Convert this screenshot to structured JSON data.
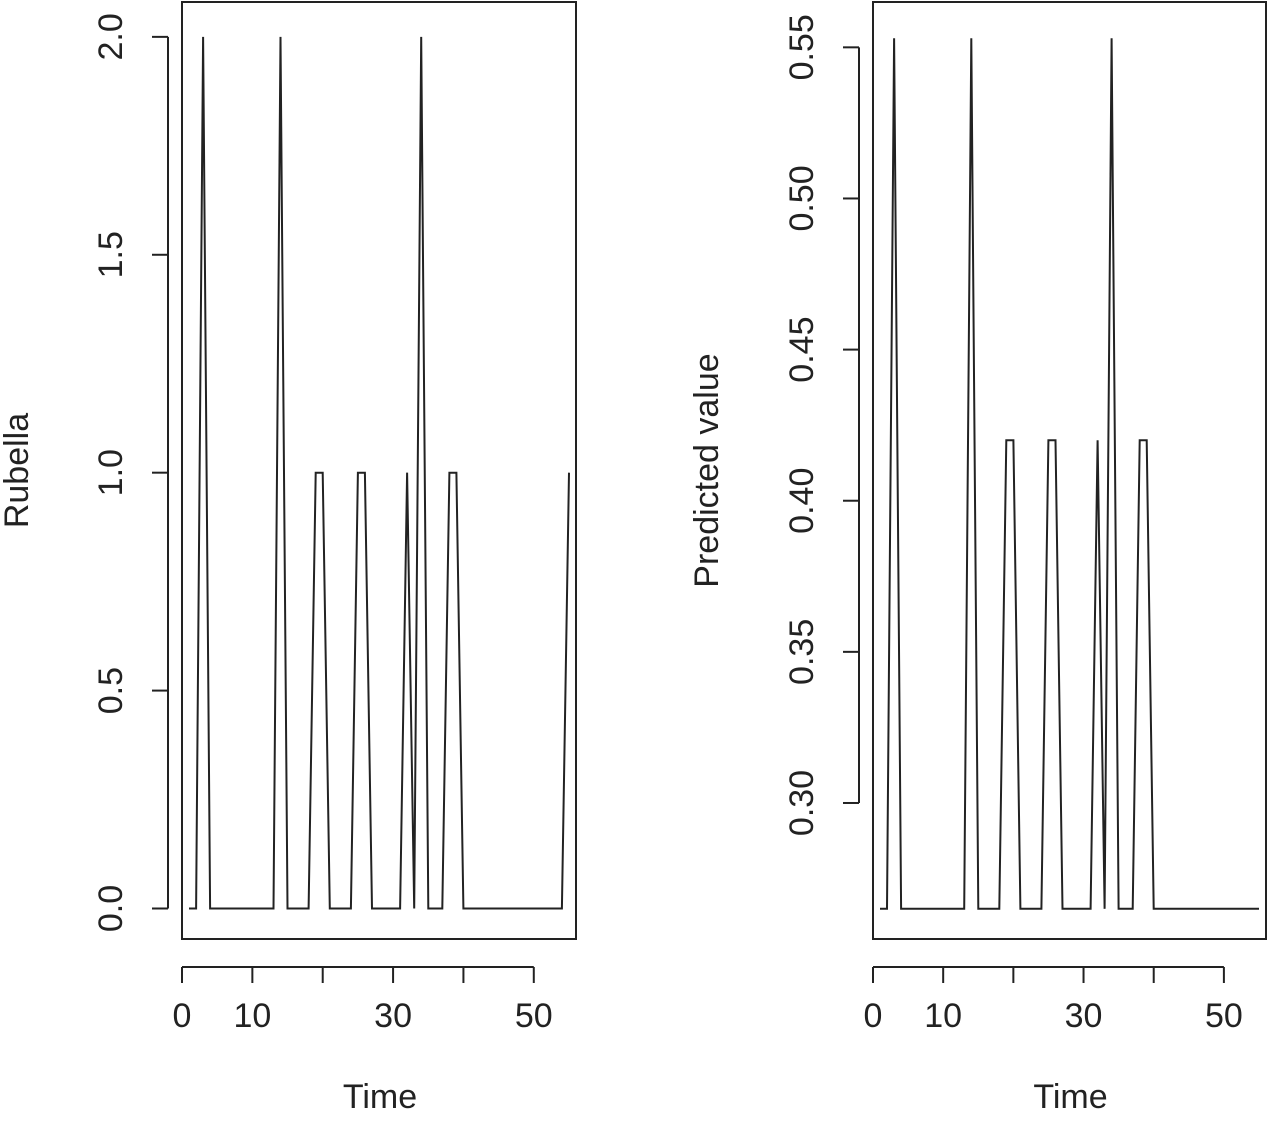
{
  "chart_data": [
    {
      "type": "line",
      "xlabel": "Time",
      "ylabel": "Rubella",
      "xlim": [
        0,
        56
      ],
      "ylim": [
        -0.07,
        2.08
      ],
      "xticks": [
        0,
        10,
        20,
        30,
        40,
        50
      ],
      "xtick_labels": [
        "0",
        "10",
        "",
        "30",
        "",
        "50"
      ],
      "yticks": [
        0.0,
        0.5,
        1.0,
        1.5,
        2.0
      ],
      "ytick_labels": [
        "0.0",
        "0.5",
        "1.0",
        "1.5",
        "2.0"
      ],
      "grid": false,
      "series": [
        {
          "x": [
            1,
            2,
            3,
            4,
            5,
            6,
            7,
            8,
            9,
            10,
            11,
            12,
            13,
            14,
            15,
            16,
            17,
            18,
            19,
            20,
            21,
            22,
            23,
            24,
            25,
            26,
            27,
            28,
            29,
            30,
            31,
            32,
            33,
            34,
            35,
            36,
            37,
            38,
            39,
            40,
            41,
            42,
            43,
            44,
            45,
            46,
            47,
            48,
            49,
            50,
            51,
            52,
            53,
            54,
            55
          ],
          "y": [
            0,
            0,
            2,
            0,
            0,
            0,
            0,
            0,
            0,
            0,
            0,
            0,
            0,
            2,
            0,
            0,
            0,
            0,
            1,
            1,
            0,
            0,
            0,
            0,
            1,
            1,
            0,
            0,
            0,
            0,
            0,
            1,
            0,
            2,
            0,
            0,
            0,
            1,
            1,
            0,
            0,
            0,
            0,
            0,
            0,
            0,
            0,
            0,
            0,
            0,
            0,
            0,
            0,
            0,
            1
          ]
        }
      ]
    },
    {
      "type": "line",
      "xlabel": "Time",
      "ylabel": "Predicted value",
      "xlim": [
        0,
        56
      ],
      "ylim": [
        0.255,
        0.565
      ],
      "xticks": [
        0,
        10,
        20,
        30,
        40,
        50
      ],
      "xtick_labels": [
        "0",
        "10",
        "",
        "30",
        "",
        "50"
      ],
      "yticks": [
        0.3,
        0.35,
        0.4,
        0.45,
        0.5,
        0.55
      ],
      "ytick_labels": [
        "0.30",
        "0.35",
        "0.40",
        "0.45",
        "0.50",
        "0.55"
      ],
      "grid": false,
      "series": [
        {
          "x": [
            1,
            2,
            3,
            4,
            5,
            6,
            7,
            8,
            9,
            10,
            11,
            12,
            13,
            14,
            15,
            16,
            17,
            18,
            19,
            20,
            21,
            22,
            23,
            24,
            25,
            26,
            27,
            28,
            29,
            30,
            31,
            32,
            33,
            34,
            35,
            36,
            37,
            38,
            39,
            40,
            41,
            42,
            43,
            44,
            45,
            46,
            47,
            48,
            49,
            50,
            51,
            52,
            53,
            54,
            55
          ],
          "y": [
            0.265,
            0.265,
            0.553,
            0.265,
            0.265,
            0.265,
            0.265,
            0.265,
            0.265,
            0.265,
            0.265,
            0.265,
            0.265,
            0.553,
            0.265,
            0.265,
            0.265,
            0.265,
            0.42,
            0.42,
            0.265,
            0.265,
            0.265,
            0.265,
            0.42,
            0.42,
            0.265,
            0.265,
            0.265,
            0.265,
            0.265,
            0.42,
            0.265,
            0.553,
            0.265,
            0.265,
            0.265,
            0.42,
            0.42,
            0.265,
            0.265,
            0.265,
            0.265,
            0.265,
            0.265,
            0.265,
            0.265,
            0.265,
            0.265,
            0.265,
            0.265,
            0.265,
            0.265,
            0.265,
            0.265
          ]
        }
      ]
    }
  ]
}
